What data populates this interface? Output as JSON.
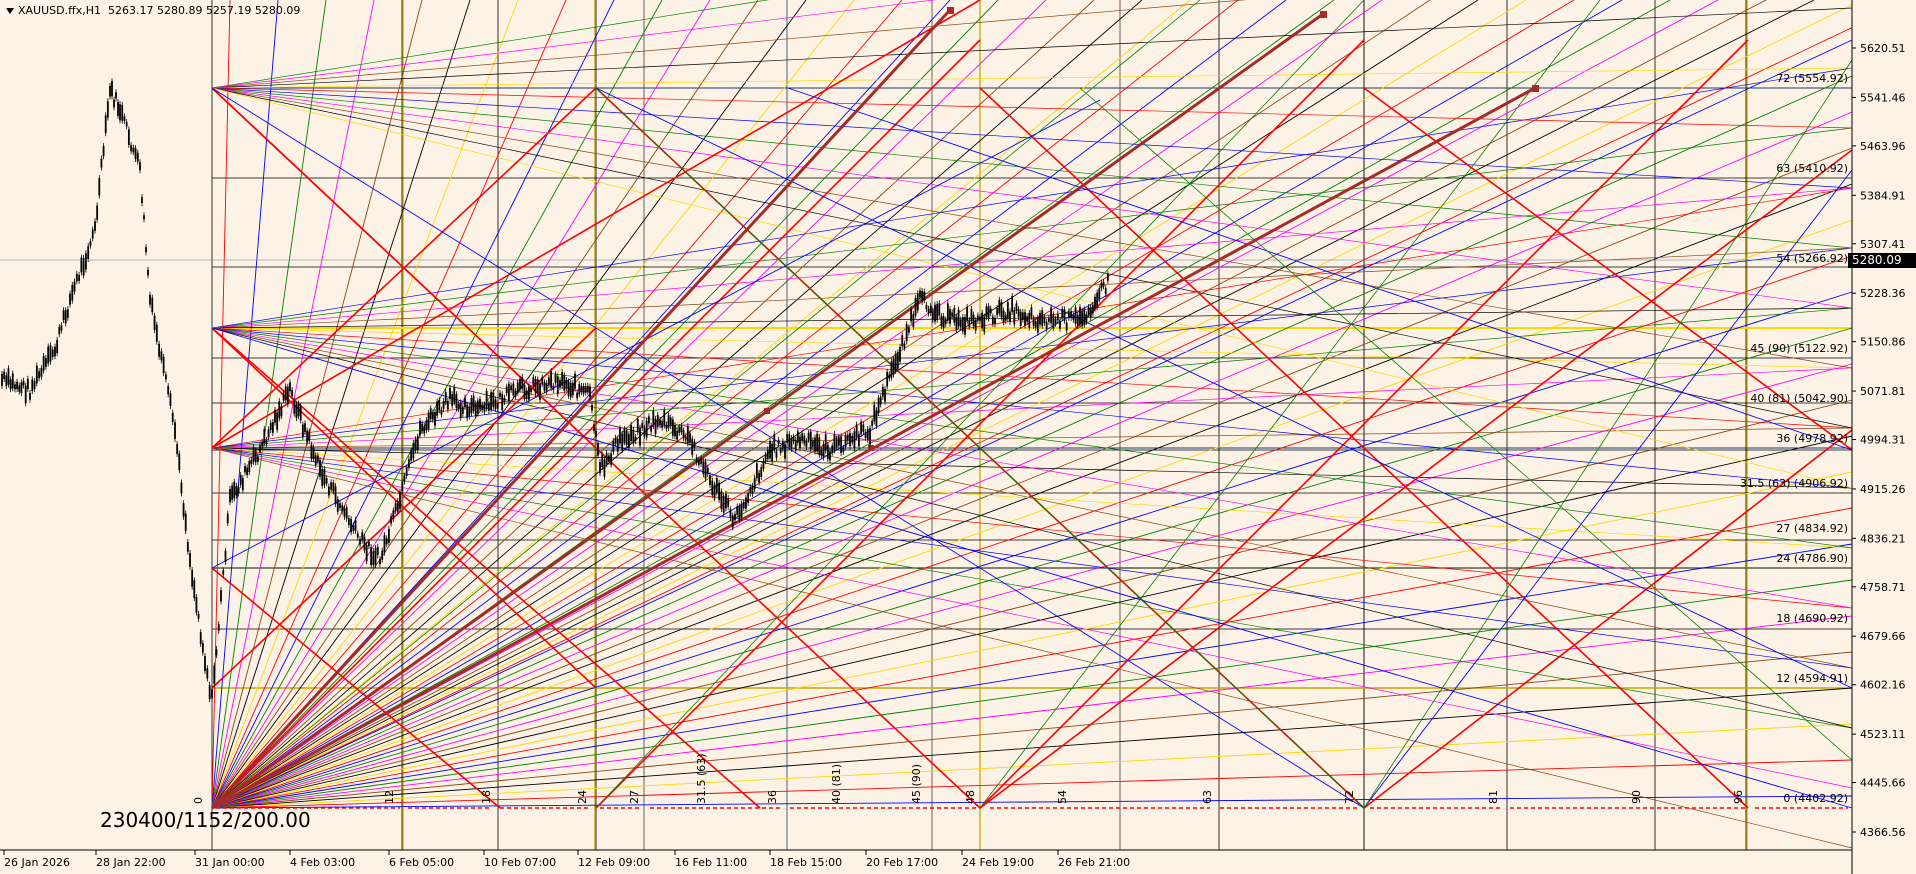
{
  "header": {
    "symbol_timeframe": "XAUUSD.ffx,H1",
    "ohlc": "5263.17 5280.89 5257.19 5280.09"
  },
  "gann_label": "230400/1152/200.00",
  "current_price_tag": "5280.09",
  "colors": {
    "background": "#fcf3e6",
    "red": "#ff0000",
    "dark_red": "#a52a2a",
    "yellow": "#ffd700",
    "gold": "#c8a800",
    "blue": "#0000ff",
    "green": "#008000",
    "magenta": "#ff00ff",
    "brown": "#8b4513",
    "black": "#000000",
    "navy": "#1c3a6e",
    "price_tag_bg": "#000000"
  },
  "chart_data": {
    "type": "candlestick",
    "symbol": "XAUUSD.ffx",
    "timeframe": "H1",
    "ylim": [
      4366.56,
      5660.0
    ],
    "price_axis_ticks": [
      5620.51,
      5541.46,
      5463.96,
      5384.91,
      5307.41,
      5228.36,
      5150.86,
      5071.81,
      4994.31,
      4915.26,
      4836.21,
      4758.71,
      4679.66,
      4602.16,
      4523.11,
      4445.66,
      4366.56
    ],
    "time_axis_ticks": [
      "26 Jan 2026",
      "28 Jan 22:00",
      "31 Jan 00:00",
      "4 Feb 03:00",
      "6 Feb 05:00",
      "10 Feb 07:00",
      "12 Feb 09:00",
      "16 Feb 11:00",
      "18 Feb 15:00",
      "20 Feb 17:00",
      "24 Feb 19:00",
      "26 Feb 21:00"
    ],
    "level_labels": [
      {
        "text": "72 (5554.92)",
        "price": 5554.92
      },
      {
        "text": "63 (5410.92)",
        "price": 5410.92
      },
      {
        "text": "54 (5266.92)",
        "price": 5266.92
      },
      {
        "text": "45 (90) (5122.92)",
        "price": 5122.92
      },
      {
        "text": "40 (81) (5042.90)",
        "price": 5042.9
      },
      {
        "text": "36 (4978.92)",
        "price": 4978.92
      },
      {
        "text": "31.5 (63) (4906.92)",
        "price": 4906.92
      },
      {
        "text": "27 (4834.92)",
        "price": 4834.92
      },
      {
        "text": "24 (4786.90)",
        "price": 4786.9
      },
      {
        "text": "18 (4690.92)",
        "price": 4690.92
      },
      {
        "text": "12 (4594.91)",
        "price": 4594.91
      },
      {
        "text": "0 (4402.92)",
        "price": 4402.92
      }
    ],
    "time_labels": [
      "0",
      "12",
      "18",
      "24",
      "27",
      "31.5 (63)",
      "36",
      "40 (81)",
      "45 (90)",
      "48",
      "54",
      "63",
      "72",
      "81",
      "90",
      "96"
    ],
    "last_price": 5280.09
  }
}
